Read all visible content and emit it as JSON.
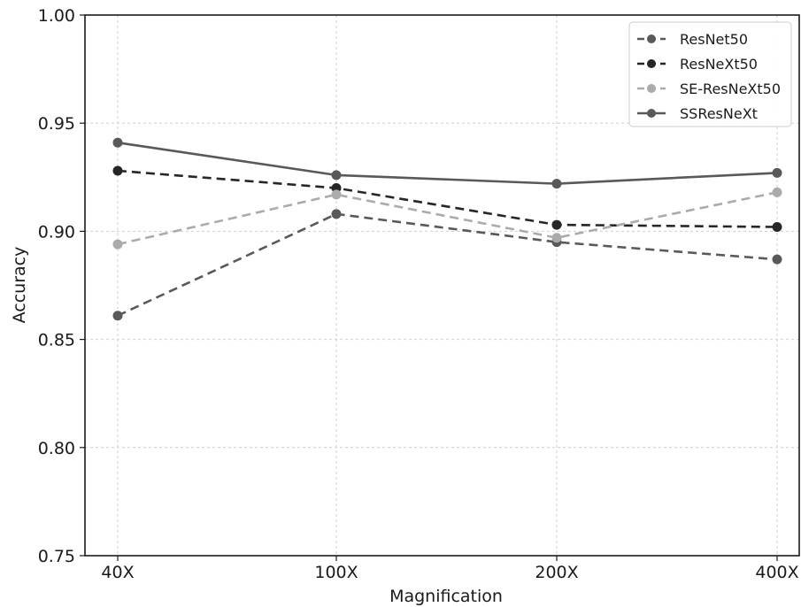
{
  "chart_data": {
    "type": "line",
    "title": "",
    "xlabel": "Magnification",
    "ylabel": "Accuracy",
    "categories": [
      "40X",
      "100X",
      "200X",
      "400X"
    ],
    "ylim": [
      0.75,
      1.0
    ],
    "yticks": [
      "0.75",
      "0.80",
      "0.85",
      "0.90",
      "0.95",
      "1.00"
    ],
    "grid": true,
    "legend_position": "top-right",
    "series": [
      {
        "name": "ResNet50",
        "values": [
          0.861,
          0.908,
          0.895,
          0.887
        ],
        "color": "#595959",
        "line_style": "dashed",
        "marker": "circle"
      },
      {
        "name": "ResNeXt50",
        "values": [
          0.928,
          0.92,
          0.903,
          0.902
        ],
        "color": "#262626",
        "line_style": "dashed",
        "marker": "circle"
      },
      {
        "name": "SE-ResNeXt50",
        "values": [
          0.894,
          0.917,
          0.897,
          0.918
        ],
        "color": "#ababab",
        "line_style": "dashed",
        "marker": "circle"
      },
      {
        "name": "SSResNeXt",
        "values": [
          0.941,
          0.926,
          0.922,
          0.927
        ],
        "color": "#595959",
        "line_style": "solid",
        "marker": "circle"
      }
    ]
  }
}
